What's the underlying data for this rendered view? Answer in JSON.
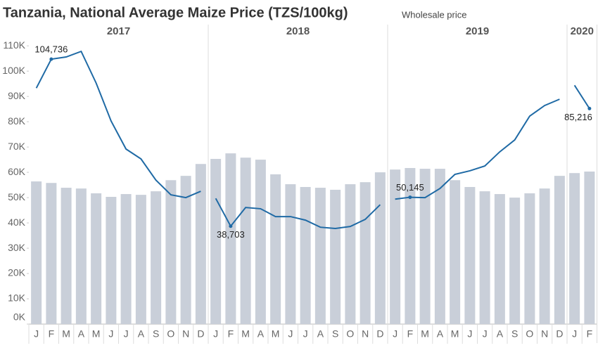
{
  "chart_data": {
    "type": "combo",
    "title": "Tanzania, National Average Maize Price (TZS/100kg)",
    "subtitle": "Wholesale price",
    "ylim": [
      0,
      112000
    ],
    "yticks": [
      {
        "value": 0,
        "label": "0K"
      },
      {
        "value": 10000,
        "label": "10K"
      },
      {
        "value": 20000,
        "label": "20K"
      },
      {
        "value": 30000,
        "label": "30K"
      },
      {
        "value": 40000,
        "label": "40K"
      },
      {
        "value": 50000,
        "label": "50K"
      },
      {
        "value": 60000,
        "label": "60K"
      },
      {
        "value": 70000,
        "label": "70K"
      },
      {
        "value": 80000,
        "label": "80K"
      },
      {
        "value": 90000,
        "label": "90K"
      },
      {
        "value": 100000,
        "label": "100K"
      },
      {
        "value": 110000,
        "label": "110K"
      }
    ],
    "bar_color": "#c9cfd9",
    "line_color": "#1f6aa5",
    "panels": [
      {
        "label": "2017",
        "categories": [
          "J",
          "F",
          "M",
          "A",
          "M",
          "J",
          "J",
          "A",
          "S",
          "O",
          "N",
          "D"
        ],
        "bar_values": [
          56400,
          55800,
          53900,
          53600,
          51700,
          50300,
          51400,
          51100,
          52500,
          56900,
          58600,
          63300
        ],
        "line_values": [
          93300,
          104736,
          105600,
          107800,
          95300,
          80300,
          69200,
          65300,
          56900,
          51100,
          50000,
          52500
        ],
        "value_labels": [
          null,
          "104,736",
          null,
          null,
          null,
          null,
          null,
          null,
          null,
          null,
          null,
          null
        ]
      },
      {
        "label": "2018",
        "categories": [
          "J",
          "F",
          "M",
          "A",
          "M",
          "J",
          "J",
          "A",
          "S",
          "O",
          "N",
          "D"
        ],
        "bar_values": [
          65300,
          67500,
          65800,
          65000,
          59200,
          55300,
          54200,
          53900,
          53100,
          55300,
          56100,
          60000
        ],
        "line_values": [
          49700,
          38703,
          46100,
          45600,
          42500,
          42500,
          41100,
          38300,
          37800,
          38600,
          41400,
          47200
        ],
        "value_labels": [
          null,
          "38,703",
          null,
          null,
          null,
          null,
          null,
          null,
          null,
          null,
          null,
          null
        ]
      },
      {
        "label": "2019",
        "categories": [
          "J",
          "F",
          "M",
          "A",
          "M",
          "J",
          "J",
          "A",
          "S",
          "O",
          "N",
          "D"
        ],
        "bar_values": [
          61100,
          61700,
          61400,
          61400,
          56900,
          54200,
          52500,
          51400,
          50000,
          51700,
          53600,
          58600
        ],
        "line_values": [
          49400,
          50145,
          50000,
          53600,
          59200,
          60600,
          62500,
          68100,
          72800,
          82200,
          86400,
          88900
        ],
        "value_labels": [
          null,
          "50,145",
          null,
          null,
          null,
          null,
          null,
          null,
          null,
          null,
          null,
          null
        ]
      },
      {
        "label": "2020",
        "categories": [
          "J",
          "F"
        ],
        "bar_values": [
          59700,
          60300
        ],
        "line_values": [
          94400,
          85216
        ],
        "value_labels": [
          null,
          "85,216"
        ]
      }
    ]
  }
}
